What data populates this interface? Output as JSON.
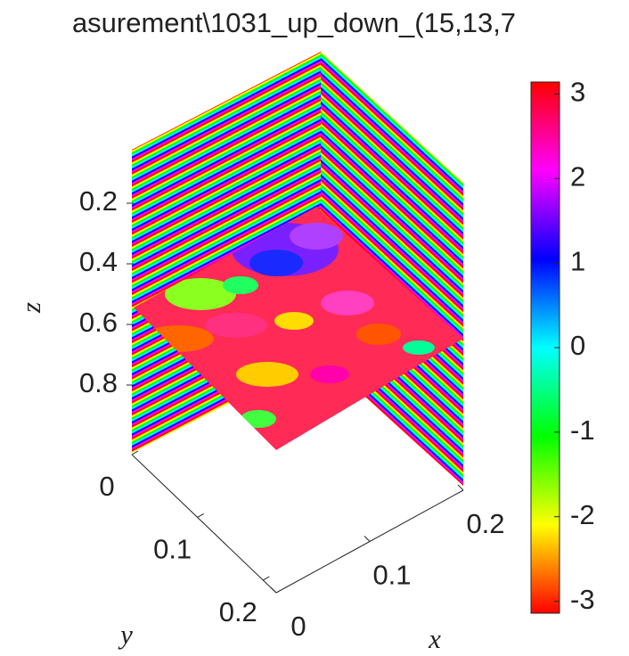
{
  "chart_data": {
    "type": "slice3d",
    "title": "asurement\\1031_up_down_(15,13,7",
    "xlabel": "x",
    "ylabel": "y",
    "zlabel": "z",
    "xlim": [
      0,
      0.2
    ],
    "xticks": [
      0,
      0.1,
      0.2
    ],
    "ylim": [
      0,
      0.22
    ],
    "yticks": [
      0,
      0.1,
      0.2
    ],
    "zlim": [
      0,
      1
    ],
    "zticks": [
      0.2,
      0.4,
      0.6,
      0.8
    ],
    "zdir": "reverse",
    "colormap": "hsv",
    "clim": [
      -3.1416,
      3.1416
    ],
    "cticks": [
      -3,
      -2,
      -1,
      0,
      1,
      2,
      3
    ]
  }
}
